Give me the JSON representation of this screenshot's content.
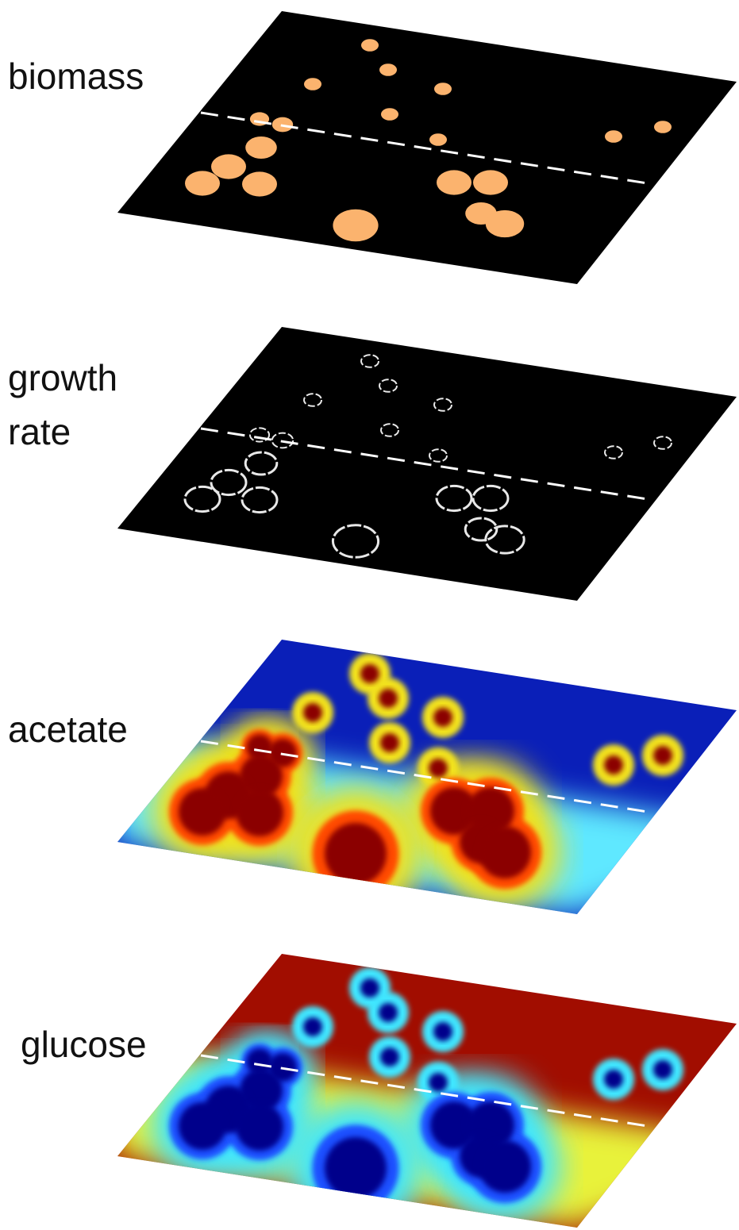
{
  "layers": [
    {
      "label_lines": [
        "biomass"
      ],
      "mode": "biomass"
    },
    {
      "label_lines": [
        "growth",
        "rate"
      ],
      "mode": "growth"
    },
    {
      "label_lines": [
        "acetate"
      ],
      "mode": "acetate"
    },
    {
      "label_lines": [
        "glucose"
      ],
      "mode": "glucose"
    }
  ],
  "colors": {
    "background": "#ffffff",
    "layer_black": "#000000",
    "biomass_colony": "#fbb36e",
    "growth_ring": "#e8e8e8",
    "divider_dash": "#ffffff",
    "high_concentration": "#8b0000",
    "low_concentration": "#00008b"
  }
}
